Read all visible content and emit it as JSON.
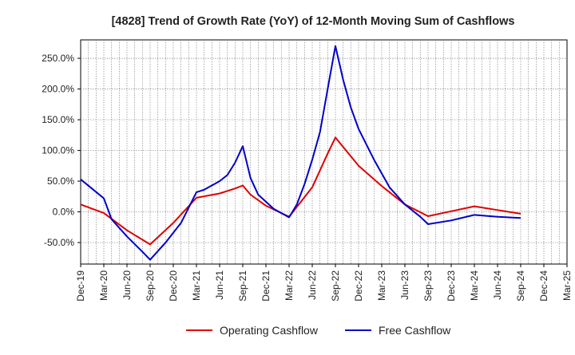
{
  "chart_data": {
    "type": "line",
    "title": "[4828]  Trend of Growth Rate (YoY) of 12-Month Moving Sum of Cashflows",
    "xlabel": "",
    "ylabel": "",
    "x_ticks": [
      "Dec-19",
      "Mar-20",
      "Jun-20",
      "Sep-20",
      "Dec-20",
      "Mar-21",
      "Jun-21",
      "Sep-21",
      "Dec-21",
      "Mar-22",
      "Jun-22",
      "Sep-22",
      "Dec-22",
      "Mar-23",
      "Jun-23",
      "Sep-23",
      "Dec-23",
      "Mar-24",
      "Jun-24",
      "Sep-24",
      "Dec-24",
      "Mar-25"
    ],
    "y_ticks": [
      -50,
      0,
      50,
      100,
      150,
      200,
      250
    ],
    "y_tick_labels": [
      "-50.0%",
      "0.0%",
      "50.0%",
      "100.0%",
      "150.0%",
      "200.0%",
      "250.0%"
    ],
    "ylim": [
      -85,
      280
    ],
    "grid": true,
    "legend_position": "bottom",
    "series": [
      {
        "name": "Operating Cashflow",
        "color": "#e00000",
        "points": [
          [
            "Dec-19",
            12
          ],
          [
            "Mar-20",
            -2
          ],
          [
            "Jun-20",
            -30
          ],
          [
            "Sep-20",
            -53
          ],
          [
            "Dec-20",
            -18
          ],
          [
            "Mar-21",
            23
          ],
          [
            "Jun-21",
            30
          ],
          [
            "Aug-21",
            38
          ],
          [
            "Sep-21",
            43
          ],
          [
            "Oct-21",
            28
          ],
          [
            "Dec-21",
            10
          ],
          [
            "Mar-22",
            -8
          ],
          [
            "Jun-22",
            40
          ],
          [
            "Aug-22",
            95
          ],
          [
            "Sep-22",
            121
          ],
          [
            "Dec-22",
            75
          ],
          [
            "Mar-23",
            42
          ],
          [
            "Jun-23",
            12
          ],
          [
            "Sep-23",
            -7
          ],
          [
            "Dec-23",
            1
          ],
          [
            "Mar-24",
            9
          ],
          [
            "Jun-24",
            3
          ],
          [
            "Sep-24",
            -3
          ]
        ]
      },
      {
        "name": "Free Cashflow",
        "color": "#0000cc",
        "points": [
          [
            "Dec-19",
            53
          ],
          [
            "Mar-20",
            22
          ],
          [
            "Apr-20",
            -12
          ],
          [
            "Jun-20",
            -40
          ],
          [
            "Aug-20",
            -65
          ],
          [
            "Sep-20",
            -78
          ],
          [
            "Nov-20",
            -50
          ],
          [
            "Jan-21",
            -18
          ],
          [
            "Mar-21",
            32
          ],
          [
            "Apr-21",
            36
          ],
          [
            "Jun-21",
            50
          ],
          [
            "Jul-21",
            60
          ],
          [
            "Aug-21",
            80
          ],
          [
            "Sep-21",
            107
          ],
          [
            "Oct-21",
            55
          ],
          [
            "Nov-21",
            28
          ],
          [
            "Jan-22",
            5
          ],
          [
            "Mar-22",
            -9
          ],
          [
            "Apr-22",
            12
          ],
          [
            "May-22",
            45
          ],
          [
            "Jun-22",
            85
          ],
          [
            "Jul-22",
            130
          ],
          [
            "Aug-22",
            200
          ],
          [
            "Sep-22",
            270
          ],
          [
            "Oct-22",
            215
          ],
          [
            "Nov-22",
            170
          ],
          [
            "Dec-22",
            135
          ],
          [
            "Feb-23",
            85
          ],
          [
            "Apr-23",
            40
          ],
          [
            "Jun-23",
            12
          ],
          [
            "Aug-23",
            -8
          ],
          [
            "Sep-23",
            -20
          ],
          [
            "Dec-23",
            -14
          ],
          [
            "Mar-24",
            -5
          ],
          [
            "Jun-24",
            -8
          ],
          [
            "Sep-24",
            -10
          ]
        ]
      }
    ]
  }
}
